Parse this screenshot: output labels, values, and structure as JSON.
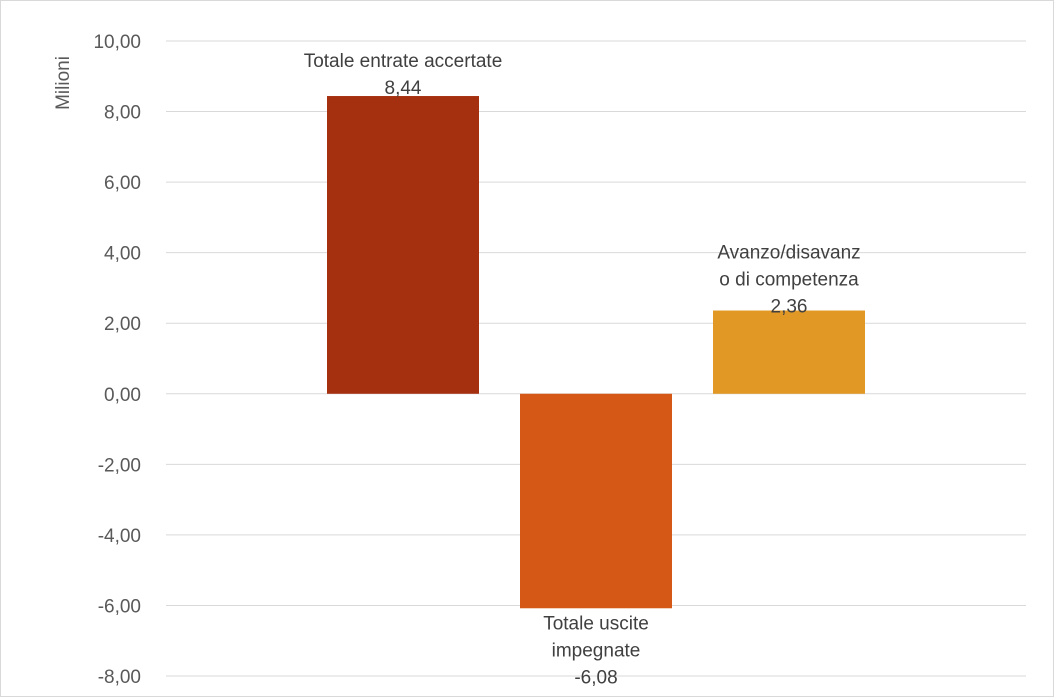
{
  "chart_data": {
    "type": "bar",
    "title": "",
    "xlabel": "",
    "ylabel": "Milioni",
    "ylim": [
      -8,
      10
    ],
    "ytick_step": 2,
    "ytick_labels": [
      "10,00",
      "8,00",
      "6,00",
      "4,00",
      "2,00",
      "0,00",
      "-2,00",
      "-4,00",
      "-6,00",
      "-8,00"
    ],
    "grid": true,
    "legend": "none",
    "categories": [
      "Totale entrate accertate",
      "Totale uscite impegnate",
      "Avanzo/disavanzo di competenza"
    ],
    "values": [
      8.44,
      -6.08,
      2.36
    ],
    "colors": [
      "#A5300F",
      "#D55816",
      "#E19825"
    ],
    "data_labels": [
      {
        "lines": [
          "Totale entrate accertate",
          "8,44"
        ]
      },
      {
        "lines": [
          "Totale uscite",
          "impegnate",
          "-6,08"
        ]
      },
      {
        "lines": [
          "Avanzo/disavanz",
          "o di competenza",
          "2,36"
        ]
      }
    ]
  }
}
